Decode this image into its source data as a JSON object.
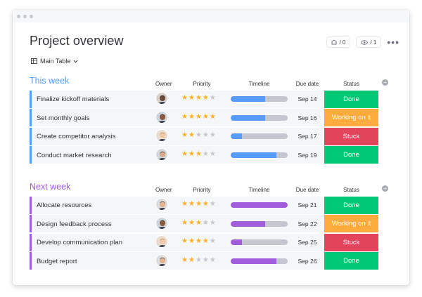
{
  "header": {
    "title": "Project overview",
    "updates_label": "/ 0",
    "viewers_label": "/ 1",
    "more_label": "•••"
  },
  "view": {
    "label": "Main Table"
  },
  "columns": {
    "owner": "Owner",
    "priority": "Priority",
    "timeline": "Timeline",
    "due": "Due date",
    "status": "Status"
  },
  "colors": {
    "group1": "#579bfc",
    "group2": "#a25ddc",
    "done": "#00c875",
    "working": "#fdab3d",
    "stuck": "#e2445c",
    "star": "#fdb022"
  },
  "groups": [
    {
      "title": "This week",
      "color": "#579bfc",
      "rows": [
        {
          "task": "Finalize kickoff materials",
          "priority": 4,
          "timeline": 0.6,
          "due": "Sep 14",
          "status": "Done",
          "status_color": "#00c875",
          "avatar": "a"
        },
        {
          "task": "Set monthly goals",
          "priority": 5,
          "timeline": 0.6,
          "due": "Sep 16",
          "status": "Working on it",
          "status_color": "#fdab3d",
          "avatar": "b"
        },
        {
          "task": "Create competitor analysis",
          "priority": 2,
          "timeline": 0.2,
          "due": "Sep 17",
          "status": "Stuck",
          "status_color": "#e2445c",
          "avatar": "c"
        },
        {
          "task": "Conduct market research",
          "priority": 3,
          "timeline": 0.8,
          "due": "Sep 19",
          "status": "Done",
          "status_color": "#00c875",
          "avatar": "d"
        }
      ]
    },
    {
      "title": "Next week",
      "color": "#a25ddc",
      "rows": [
        {
          "task": "Allocate resources",
          "priority": 4,
          "timeline": 1.0,
          "due": "Sep 21",
          "status": "Done",
          "status_color": "#00c875",
          "avatar": "e"
        },
        {
          "task": "Design feedback process",
          "priority": 3,
          "timeline": 0.6,
          "due": "Sep 22",
          "status": "Working on it",
          "status_color": "#fdab3d",
          "avatar": "b"
        },
        {
          "task": "Develop communication plan",
          "priority": 4,
          "timeline": 0.2,
          "due": "Sep 25",
          "status": "Stuck",
          "status_color": "#e2445c",
          "avatar": "c"
        },
        {
          "task": "Budget report",
          "priority": 2,
          "timeline": 0.8,
          "due": "Sep 26",
          "status": "Done",
          "status_color": "#00c875",
          "avatar": "e"
        }
      ]
    }
  ]
}
